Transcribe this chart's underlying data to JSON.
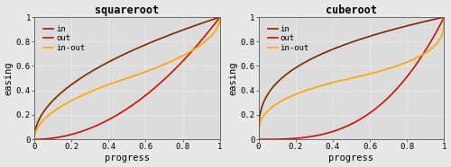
{
  "charts": [
    {
      "title": "squareroot",
      "power": 2
    },
    {
      "title": "cuberoot",
      "power": 3
    }
  ],
  "color_in": "#7B2800",
  "color_out": "#CC1100",
  "color_inout": "#FFA500",
  "xlabel": "progress",
  "ylabel": "easing",
  "xlim": [
    0,
    1
  ],
  "ylim": [
    0,
    1
  ],
  "xticks": [
    0,
    0.2,
    0.4,
    0.6,
    0.8,
    1
  ],
  "yticks": [
    0,
    0.2,
    0.4,
    0.6,
    0.8,
    1
  ],
  "tick_labels": [
    "0",
    "0.2",
    "0.4",
    "0.6",
    "0.8",
    "1"
  ],
  "legend_labels": [
    "in",
    "out",
    "in-out"
  ],
  "background_color": "#e8e8e8",
  "plot_bg_color": "#dcdcdc",
  "grid_color": "#ffffff",
  "linewidth": 1.2,
  "title_fontsize": 8.5,
  "label_fontsize": 7.5,
  "tick_fontsize": 6.5,
  "legend_fontsize": 6.5
}
